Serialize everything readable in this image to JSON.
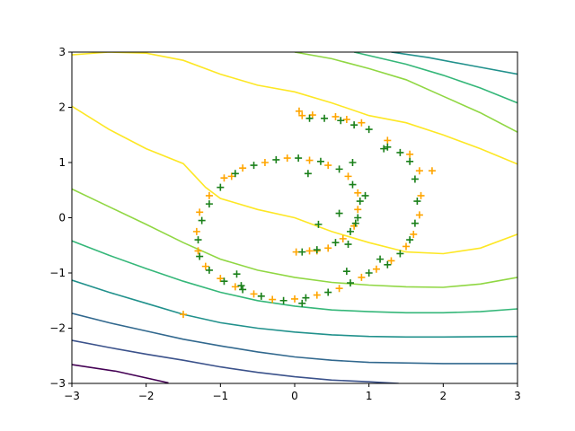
{
  "chart_data": {
    "type": "scatter",
    "title": "",
    "xlabel": "",
    "ylabel": "",
    "xlim": [
      -3,
      3
    ],
    "ylim": [
      -3,
      3
    ],
    "grid": false,
    "x_ticks": [
      "−3",
      "−2",
      "−1",
      "0",
      "1",
      "2",
      "3"
    ],
    "y_ticks": [
      "−3",
      "−2",
      "−1",
      "0",
      "1",
      "2",
      "3"
    ],
    "contours": [
      {
        "level": 0,
        "color": "#440154",
        "points": [
          [
            -3,
            -2.66
          ],
          [
            -2.4,
            -2.78
          ],
          [
            -1.7,
            -2.99
          ]
        ]
      },
      {
        "level": 1,
        "color": "#3b528b",
        "points": [
          [
            -3,
            -2.22
          ],
          [
            -2.5,
            -2.35
          ],
          [
            -2,
            -2.47
          ],
          [
            -1.5,
            -2.58
          ],
          [
            -1,
            -2.7
          ],
          [
            -0.5,
            -2.8
          ],
          [
            0,
            -2.88
          ],
          [
            0.5,
            -2.94
          ],
          [
            1,
            -2.97
          ],
          [
            1.4,
            -3.0
          ]
        ]
      },
      {
        "level": 2,
        "color": "#31688e",
        "points": [
          [
            -3,
            -1.73
          ],
          [
            -2.5,
            -1.9
          ],
          [
            -2,
            -2.05
          ],
          [
            -1.5,
            -2.2
          ],
          [
            -1,
            -2.32
          ],
          [
            -0.5,
            -2.43
          ],
          [
            0,
            -2.52
          ],
          [
            0.5,
            -2.58
          ],
          [
            1,
            -2.62
          ],
          [
            2,
            -2.64
          ],
          [
            3,
            -2.64
          ]
        ]
      },
      {
        "level": 3,
        "color": "#21918c",
        "points": [
          [
            -3,
            -1.13
          ],
          [
            -2.5,
            -1.35
          ],
          [
            -2,
            -1.55
          ],
          [
            -1.5,
            -1.75
          ],
          [
            -1,
            -1.9
          ],
          [
            -0.5,
            -2.0
          ],
          [
            0,
            -2.07
          ],
          [
            0.5,
            -2.12
          ],
          [
            1,
            -2.15
          ],
          [
            1.5,
            -2.16
          ],
          [
            2,
            -2.16
          ],
          [
            3,
            -2.15
          ]
        ]
      },
      {
        "level": 4,
        "color": "#35b779",
        "points": [
          [
            -3,
            -0.42
          ],
          [
            -2.5,
            -0.68
          ],
          [
            -2,
            -0.92
          ],
          [
            -1.5,
            -1.15
          ],
          [
            -1,
            -1.35
          ],
          [
            -0.5,
            -1.5
          ],
          [
            0,
            -1.6
          ],
          [
            0.5,
            -1.67
          ],
          [
            1,
            -1.7
          ],
          [
            1.5,
            -1.72
          ],
          [
            2,
            -1.72
          ],
          [
            2.5,
            -1.7
          ],
          [
            3,
            -1.65
          ]
        ]
      },
      {
        "level": 5,
        "color": "#90d743",
        "points": [
          [
            -3,
            0.52
          ],
          [
            -2.5,
            0.2
          ],
          [
            -2,
            -0.12
          ],
          [
            -1.5,
            -0.45
          ],
          [
            -1,
            -0.75
          ],
          [
            -0.5,
            -0.95
          ],
          [
            0,
            -1.08
          ],
          [
            0.5,
            -1.17
          ],
          [
            1,
            -1.22
          ],
          [
            1.5,
            -1.25
          ],
          [
            2,
            -1.26
          ],
          [
            2.5,
            -1.2
          ],
          [
            3,
            -1.08
          ]
        ]
      },
      {
        "level": 6,
        "color": "#fde725",
        "points": [
          [
            -3,
            2.02
          ],
          [
            -2.5,
            1.6
          ],
          [
            -2,
            1.25
          ],
          [
            -1.5,
            0.98
          ],
          [
            -1.2,
            0.55
          ],
          [
            -1,
            0.35
          ],
          [
            -0.5,
            0.15
          ],
          [
            0,
            0.0
          ],
          [
            0.5,
            -0.25
          ],
          [
            1,
            -0.45
          ],
          [
            1.5,
            -0.62
          ],
          [
            2,
            -0.65
          ],
          [
            2.5,
            -0.55
          ],
          [
            3,
            -0.3
          ]
        ]
      },
      {
        "level": 6,
        "color": "#fde725",
        "points": [
          [
            -3,
            2.95
          ],
          [
            -2.5,
            3.0
          ],
          [
            -2,
            2.98
          ],
          [
            -1.5,
            2.85
          ],
          [
            -1,
            2.6
          ],
          [
            -0.5,
            2.4
          ],
          [
            0,
            2.28
          ],
          [
            0.5,
            2.08
          ],
          [
            1,
            1.85
          ],
          [
            1.5,
            1.72
          ],
          [
            2,
            1.5
          ],
          [
            2.5,
            1.25
          ],
          [
            3,
            0.97
          ]
        ]
      },
      {
        "level": 5,
        "color": "#90d743",
        "points": [
          [
            0,
            3.0
          ],
          [
            0.5,
            2.88
          ],
          [
            1,
            2.7
          ],
          [
            1.5,
            2.5
          ],
          [
            2,
            2.2
          ],
          [
            2.5,
            1.9
          ],
          [
            3,
            1.55
          ]
        ]
      },
      {
        "level": 4,
        "color": "#35b779",
        "points": [
          [
            0.8,
            3.0
          ],
          [
            1.5,
            2.78
          ],
          [
            2,
            2.58
          ],
          [
            2.5,
            2.35
          ],
          [
            3,
            2.08
          ]
        ]
      },
      {
        "level": 3,
        "color": "#21918c",
        "points": [
          [
            1.3,
            3.0
          ],
          [
            1.8,
            2.9
          ],
          [
            2.4,
            2.75
          ],
          [
            3,
            2.6
          ]
        ]
      }
    ],
    "series": [
      {
        "marker": "+",
        "color": "#ffa500",
        "values": [
          [
            0.06,
            1.93
          ],
          [
            0.1,
            1.85
          ],
          [
            0.24,
            1.86
          ],
          [
            0.55,
            1.83
          ],
          [
            0.7,
            1.78
          ],
          [
            0.9,
            1.72
          ],
          [
            1.25,
            1.4
          ],
          [
            1.55,
            1.15
          ],
          [
            1.68,
            0.85
          ],
          [
            1.7,
            0.4
          ],
          [
            1.68,
            0.05
          ],
          [
            1.6,
            -0.3
          ],
          [
            1.5,
            -0.52
          ],
          [
            1.3,
            -0.78
          ],
          [
            1.1,
            -0.93
          ],
          [
            0.9,
            -1.08
          ],
          [
            0.6,
            -1.28
          ],
          [
            0.3,
            -1.4
          ],
          [
            0.0,
            -1.47
          ],
          [
            -0.3,
            -1.48
          ],
          [
            -0.55,
            -1.38
          ],
          [
            -0.8,
            -1.25
          ],
          [
            -1.0,
            -1.1
          ],
          [
            -1.2,
            -0.88
          ],
          [
            -1.3,
            -0.6
          ],
          [
            -1.32,
            -0.25
          ],
          [
            -1.28,
            0.1
          ],
          [
            -1.15,
            0.4
          ],
          [
            -0.95,
            0.72
          ],
          [
            -0.7,
            0.9
          ],
          [
            -0.4,
            1.0
          ],
          [
            -0.1,
            1.08
          ],
          [
            0.2,
            1.04
          ],
          [
            0.45,
            0.95
          ],
          [
            0.72,
            0.75
          ],
          [
            0.85,
            0.45
          ],
          [
            0.85,
            0.15
          ],
          [
            0.8,
            -0.15
          ],
          [
            0.65,
            -0.38
          ],
          [
            0.45,
            -0.55
          ],
          [
            0.2,
            -0.6
          ],
          [
            0.02,
            -0.62
          ],
          [
            -1.5,
            -1.75
          ],
          [
            0.3,
            -0.6
          ],
          [
            -0.85,
            0.75
          ],
          [
            1.85,
            0.85
          ]
        ]
      },
      {
        "marker": "+",
        "color": "#1a801a",
        "values": [
          [
            0.2,
            1.8
          ],
          [
            0.4,
            1.8
          ],
          [
            0.62,
            1.76
          ],
          [
            0.8,
            1.68
          ],
          [
            1.0,
            1.6
          ],
          [
            1.25,
            1.28
          ],
          [
            1.42,
            1.18
          ],
          [
            1.55,
            1.02
          ],
          [
            1.62,
            0.7
          ],
          [
            1.65,
            0.3
          ],
          [
            1.62,
            -0.1
          ],
          [
            1.55,
            -0.4
          ],
          [
            1.42,
            -0.65
          ],
          [
            1.25,
            -0.85
          ],
          [
            1.0,
            -1.0
          ],
          [
            0.75,
            -1.18
          ],
          [
            0.45,
            -1.35
          ],
          [
            0.15,
            -1.45
          ],
          [
            -0.15,
            -1.5
          ],
          [
            -0.45,
            -1.42
          ],
          [
            -0.7,
            -1.3
          ],
          [
            -0.95,
            -1.15
          ],
          [
            -1.15,
            -0.95
          ],
          [
            -1.28,
            -0.7
          ],
          [
            -1.3,
            -0.4
          ],
          [
            -1.25,
            -0.05
          ],
          [
            -1.15,
            0.25
          ],
          [
            -1.0,
            0.55
          ],
          [
            -0.8,
            0.8
          ],
          [
            -0.55,
            0.95
          ],
          [
            -0.25,
            1.05
          ],
          [
            0.05,
            1.08
          ],
          [
            0.35,
            1.02
          ],
          [
            0.6,
            0.88
          ],
          [
            0.78,
            0.6
          ],
          [
            0.88,
            0.3
          ],
          [
            0.85,
            0.0
          ],
          [
            0.75,
            -0.25
          ],
          [
            0.55,
            -0.45
          ],
          [
            0.3,
            -0.58
          ],
          [
            0.1,
            -0.62
          ],
          [
            0.78,
            1.0
          ],
          [
            0.95,
            0.4
          ],
          [
            0.82,
            -0.1
          ],
          [
            1.15,
            -0.75
          ],
          [
            0.18,
            0.8
          ],
          [
            0.6,
            0.08
          ],
          [
            0.32,
            -0.12
          ],
          [
            0.72,
            -0.48
          ],
          [
            0.7,
            -0.97
          ],
          [
            -0.78,
            -1.02
          ],
          [
            -0.72,
            -1.23
          ],
          [
            0.1,
            -1.55
          ],
          [
            1.2,
            1.25
          ]
        ]
      }
    ]
  }
}
